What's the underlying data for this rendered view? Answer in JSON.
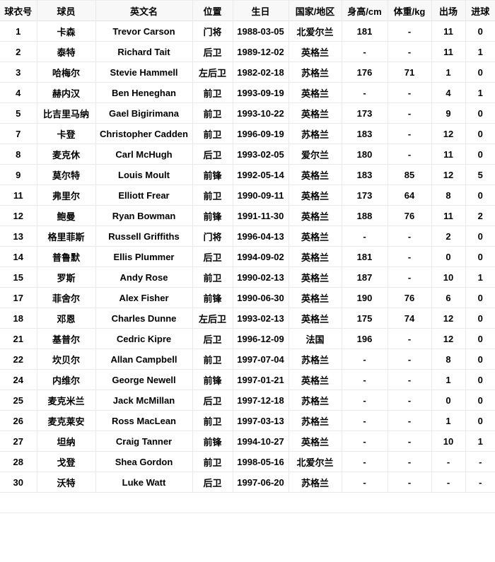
{
  "table": {
    "columns": [
      "球衣号",
      "球员",
      "英文名",
      "位置",
      "生日",
      "国家/地区",
      "身高/cm",
      "体重/kg",
      "出场",
      "进球"
    ],
    "rows": [
      [
        "1",
        "卡森",
        "Trevor Carson",
        "门将",
        "1988-03-05",
        "北爱尔兰",
        "181",
        "-",
        "11",
        "0"
      ],
      [
        "2",
        "泰特",
        "Richard Tait",
        "后卫",
        "1989-12-02",
        "英格兰",
        "-",
        "-",
        "11",
        "1"
      ],
      [
        "3",
        "哈梅尔",
        "Stevie Hammell",
        "左后卫",
        "1982-02-18",
        "苏格兰",
        "176",
        "71",
        "1",
        "0"
      ],
      [
        "4",
        "赫内汉",
        "Ben Heneghan",
        "前卫",
        "1993-09-19",
        "英格兰",
        "-",
        "-",
        "4",
        "1"
      ],
      [
        "5",
        "比吉里马纳",
        "Gael Bigirimana",
        "前卫",
        "1993-10-22",
        "英格兰",
        "173",
        "-",
        "9",
        "0"
      ],
      [
        "7",
        "卡登",
        "Christopher Cadden",
        "前卫",
        "1996-09-19",
        "苏格兰",
        "183",
        "-",
        "12",
        "0"
      ],
      [
        "8",
        "麦克休",
        "Carl McHugh",
        "后卫",
        "1993-02-05",
        "爱尔兰",
        "180",
        "-",
        "11",
        "0"
      ],
      [
        "9",
        "莫尔特",
        "Louis Moult",
        "前锋",
        "1992-05-14",
        "英格兰",
        "183",
        "85",
        "12",
        "5"
      ],
      [
        "11",
        "弗里尔",
        "Elliott Frear",
        "前卫",
        "1990-09-11",
        "英格兰",
        "173",
        "64",
        "8",
        "0"
      ],
      [
        "12",
        "鲍曼",
        "Ryan Bowman",
        "前锋",
        "1991-11-30",
        "英格兰",
        "188",
        "76",
        "11",
        "2"
      ],
      [
        "13",
        "格里菲斯",
        "Russell Griffiths",
        "门将",
        "1996-04-13",
        "英格兰",
        "-",
        "-",
        "2",
        "0"
      ],
      [
        "14",
        "普鲁默",
        "Ellis Plummer",
        "后卫",
        "1994-09-02",
        "英格兰",
        "181",
        "-",
        "0",
        "0"
      ],
      [
        "15",
        "罗斯",
        "Andy Rose",
        "前卫",
        "1990-02-13",
        "英格兰",
        "187",
        "-",
        "10",
        "1"
      ],
      [
        "17",
        "菲舍尔",
        "Alex Fisher",
        "前锋",
        "1990-06-30",
        "英格兰",
        "190",
        "76",
        "6",
        "0"
      ],
      [
        "18",
        "邓恩",
        "Charles Dunne",
        "左后卫",
        "1993-02-13",
        "英格兰",
        "175",
        "74",
        "12",
        "0"
      ],
      [
        "21",
        "基普尔",
        "Cedric Kipre",
        "后卫",
        "1996-12-09",
        "法国",
        "196",
        "-",
        "12",
        "0"
      ],
      [
        "22",
        "坎贝尔",
        "Allan Campbell",
        "前卫",
        "1997-07-04",
        "苏格兰",
        "-",
        "-",
        "8",
        "0"
      ],
      [
        "24",
        "内维尔",
        "George Newell",
        "前锋",
        "1997-01-21",
        "英格兰",
        "-",
        "-",
        "1",
        "0"
      ],
      [
        "25",
        "麦克米兰",
        "Jack McMillan",
        "后卫",
        "1997-12-18",
        "苏格兰",
        "-",
        "-",
        "0",
        "0"
      ],
      [
        "26",
        "麦克莱安",
        "Ross MacLean",
        "前卫",
        "1997-03-13",
        "苏格兰",
        "-",
        "-",
        "1",
        "0"
      ],
      [
        "27",
        "坦纳",
        "Craig Tanner",
        "前锋",
        "1994-10-27",
        "英格兰",
        "-",
        "-",
        "10",
        "1"
      ],
      [
        "28",
        "戈登",
        "Shea Gordon",
        "前卫",
        "1998-05-16",
        "北爱尔兰",
        "-",
        "-",
        "-",
        "-"
      ],
      [
        "30",
        "沃特",
        "Luke Watt",
        "后卫",
        "1997-06-20",
        "苏格兰",
        "-",
        "-",
        "-",
        "-"
      ]
    ],
    "column_keys": [
      "jersey-number",
      "player-name-cn",
      "player-name-en",
      "position",
      "birthday",
      "country",
      "height",
      "weight",
      "appearances",
      "goals"
    ]
  },
  "colors": {
    "text": "#000000",
    "border": "#e9e9e9",
    "header_bg": "#f8f8f8"
  }
}
